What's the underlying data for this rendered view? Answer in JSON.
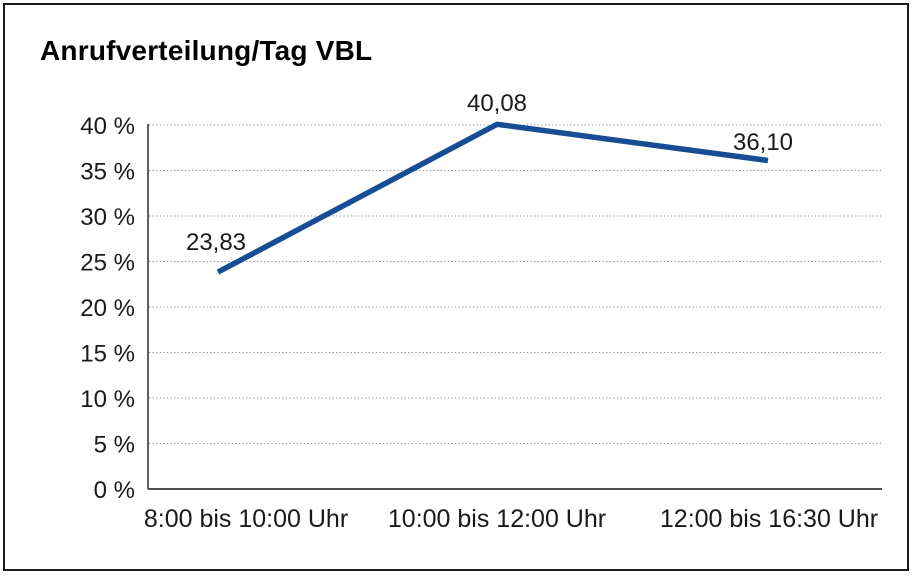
{
  "title": "Anrufverteilung/Tag VBL",
  "chart_data": {
    "type": "line",
    "title": "Anrufverteilung/Tag VBL",
    "categories": [
      "8:00 bis 10:00 Uhr",
      "10:00 bis 12:00 Uhr",
      "12:00 bis 16:30 Uhr"
    ],
    "values": [
      23.83,
      40.08,
      36.1
    ],
    "point_labels": [
      "23,83",
      "40,08",
      "36,10"
    ],
    "xlabel": "",
    "ylabel": "",
    "ylim": [
      0,
      40
    ],
    "ytick_step": 5,
    "ytick_labels": [
      "0 %",
      "5 %",
      "10 %",
      "15 %",
      "20 %",
      "25 %",
      "30 %",
      "35 %",
      "40 %"
    ],
    "grid": "horizontal-dotted",
    "legend_position": "none",
    "series": [
      {
        "name": "Anrufverteilung/Tag VBL",
        "values": [
          23.83,
          40.08,
          36.1
        ]
      }
    ]
  },
  "colors": {
    "line": "#164d94",
    "grid": "#8a8a8a",
    "y_axis": "#2b2b2b",
    "x_axis": "#4d4d4d",
    "border": "#1c1c1c",
    "text": "#1a1a1a",
    "background": "#ffffff"
  }
}
